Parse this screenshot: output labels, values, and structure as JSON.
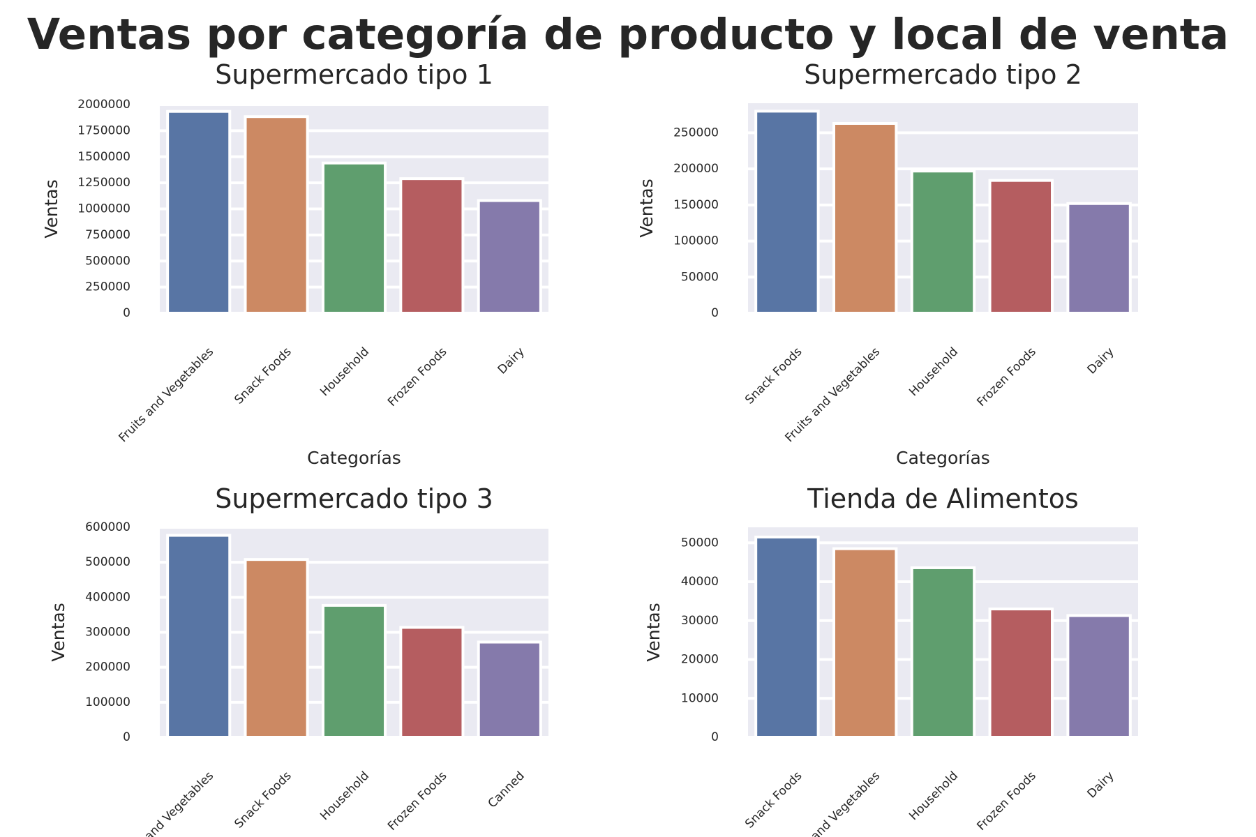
{
  "title": "Ventas por categoría de producto y local de venta",
  "colors": [
    "#5875a4",
    "#cc8963",
    "#5f9e6e",
    "#b55d60",
    "#857aab"
  ],
  "chart_data": [
    {
      "type": "bar",
      "title": "Supermercado tipo 1",
      "xlabel": "Categorías",
      "ylabel": "Ventas",
      "categories": [
        "Fruits and Vegetables",
        "Snack Foods",
        "Household",
        "Frozen Foods",
        "Dairy"
      ],
      "values": [
        1935000,
        1885000,
        1440000,
        1290000,
        1080000
      ],
      "ylim": [
        0,
        2000000
      ],
      "yticks": [
        0,
        250000,
        500000,
        750000,
        1000000,
        1250000,
        1500000,
        1750000,
        2000000
      ],
      "ytick_labels": [
        "0",
        "250000",
        "500000",
        "750000",
        "1000000",
        "1250000",
        "1500000",
        "1750000",
        "2000000"
      ]
    },
    {
      "type": "bar",
      "title": "Supermercado tipo 2",
      "xlabel": "Categorías",
      "ylabel": "Ventas",
      "categories": [
        "Snack Foods",
        "Fruits and Vegetables",
        "Household",
        "Frozen Foods",
        "Dairy"
      ],
      "values": [
        280000,
        263000,
        197000,
        184000,
        152000
      ],
      "ylim": [
        0,
        291000
      ],
      "yticks": [
        0,
        50000,
        100000,
        150000,
        200000,
        250000
      ],
      "ytick_labels": [
        "0",
        "50000",
        "100000",
        "150000",
        "200000",
        "250000"
      ]
    },
    {
      "type": "bar",
      "title": "Supermercado tipo 3",
      "xlabel": "",
      "ylabel": "Ventas",
      "categories": [
        "Fruits and Vegetables",
        "Snack Foods",
        "Household",
        "Frozen Foods",
        "Canned"
      ],
      "values": [
        577000,
        508000,
        377000,
        314000,
        272000
      ],
      "ylim": [
        0,
        600000
      ],
      "yticks": [
        0,
        100000,
        200000,
        300000,
        400000,
        500000,
        600000
      ],
      "ytick_labels": [
        "0",
        "100000",
        "200000",
        "300000",
        "400000",
        "500000",
        "600000"
      ]
    },
    {
      "type": "bar",
      "title": "Tienda de Alimentos",
      "xlabel": "",
      "ylabel": "Ventas",
      "categories": [
        "Snack Foods",
        "Fruits and Vegetables",
        "Household",
        "Frozen Foods",
        "Dairy"
      ],
      "values": [
        51500,
        48500,
        43600,
        33000,
        31300
      ],
      "ylim": [
        0,
        54000
      ],
      "yticks": [
        0,
        10000,
        20000,
        30000,
        40000,
        50000
      ],
      "ytick_labels": [
        "0",
        "10000",
        "20000",
        "30000",
        "40000",
        "50000"
      ]
    }
  ]
}
